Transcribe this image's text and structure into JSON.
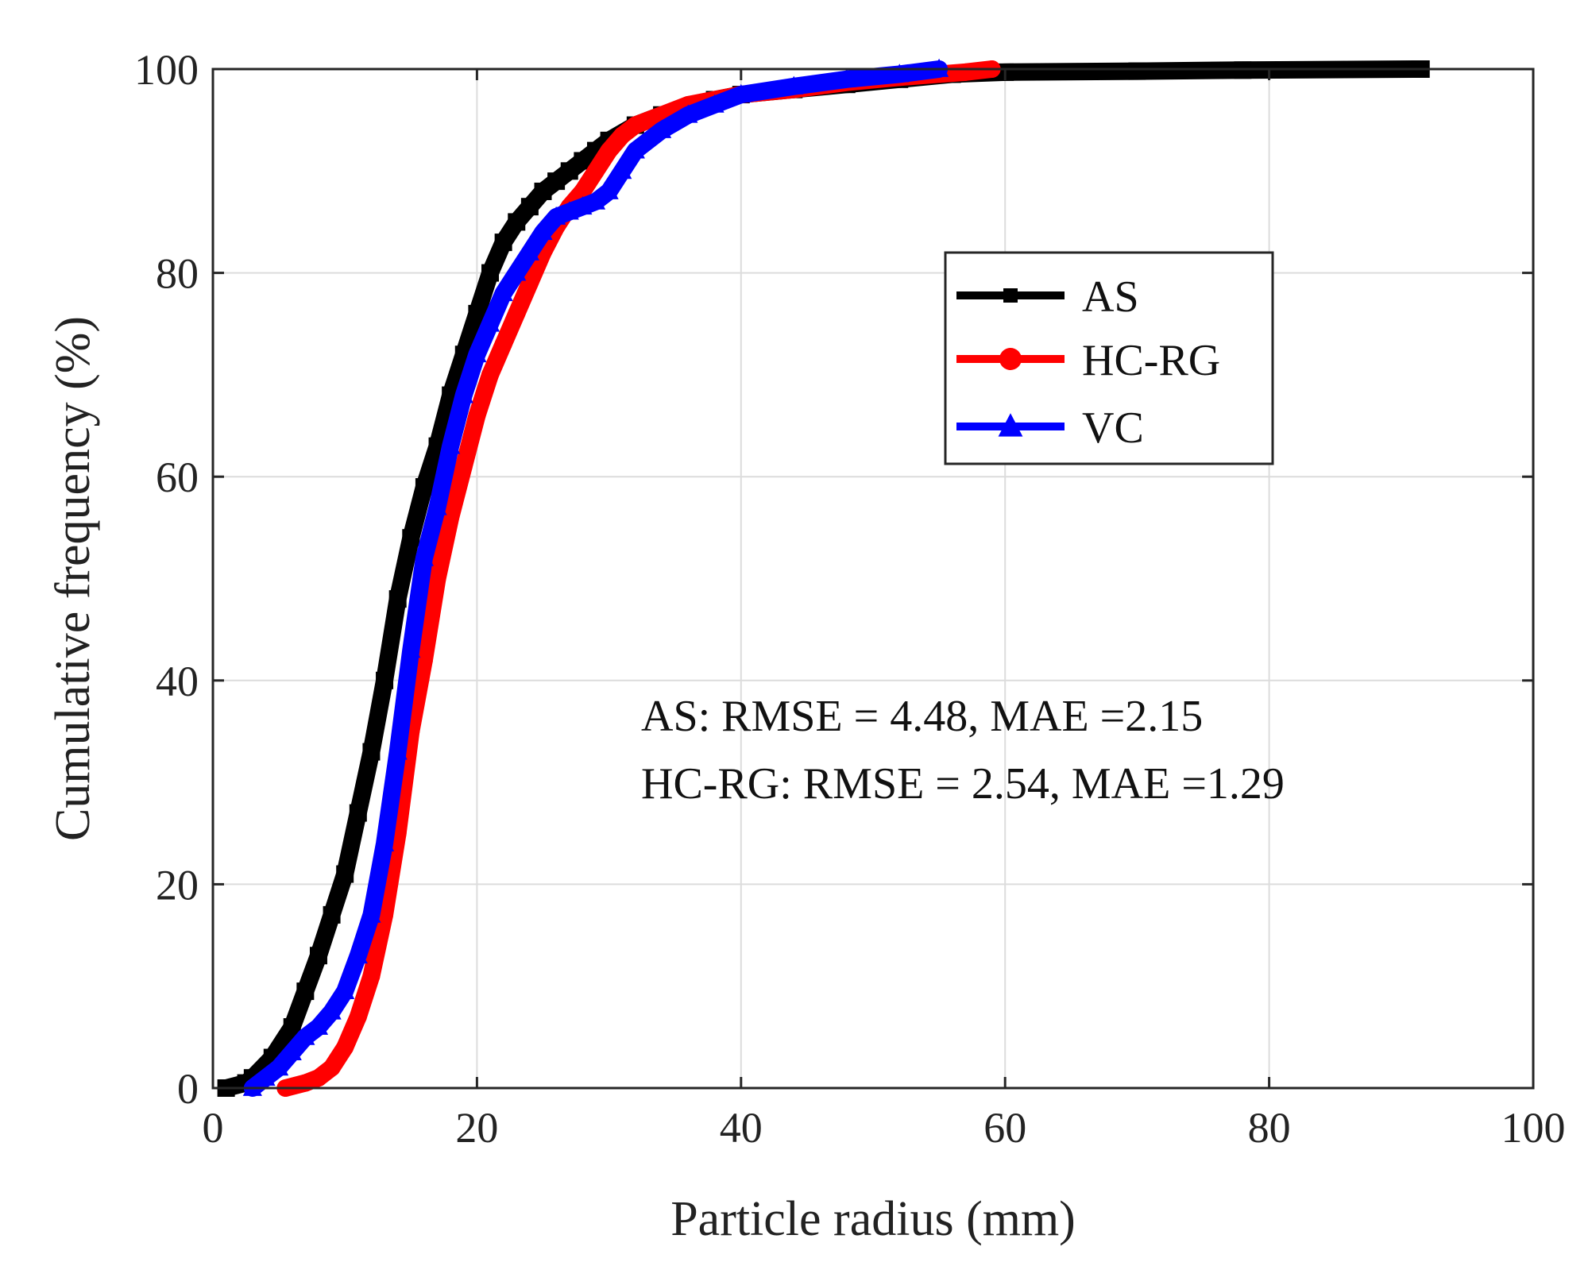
{
  "chart_data": {
    "type": "line",
    "title": "",
    "xlabel": "Particle radius (mm)",
    "ylabel": "Cumulative frequency (%)",
    "xlim": [
      0,
      100
    ],
    "ylim": [
      0,
      100
    ],
    "xticks": [
      0,
      20,
      40,
      60,
      80,
      100
    ],
    "yticks": [
      0,
      20,
      40,
      60,
      80,
      100
    ],
    "grid": true,
    "legend_position": "top-right",
    "series": [
      {
        "name": "AS",
        "color": "#000000",
        "marker": "square",
        "x": [
          1.0,
          2.5,
          3.0,
          4.5,
          6.0,
          7.0,
          8.0,
          9.0,
          10.0,
          11.0,
          12.0,
          13.0,
          14.0,
          15.0,
          16.0,
          17.0,
          18.0,
          19.0,
          20.0,
          21.0,
          22.0,
          23.0,
          24.0,
          25.0,
          26.0,
          27.0,
          28.0,
          29.0,
          30.0,
          32.0,
          34.0,
          36.0,
          38.0,
          40.0,
          44.0,
          48.0,
          52.0,
          56.0,
          60.0,
          70.0,
          78.0,
          91.5
        ],
        "y": [
          0.0,
          0.5,
          1.0,
          3.0,
          6.0,
          9.5,
          13.0,
          17.0,
          21.0,
          27.0,
          33.0,
          40.0,
          48.0,
          54.0,
          59.0,
          63.0,
          68.0,
          72.0,
          76.0,
          80.0,
          83.0,
          85.0,
          86.5,
          88.0,
          89.0,
          90.0,
          91.0,
          92.0,
          93.0,
          94.5,
          95.5,
          96.0,
          97.0,
          97.5,
          98.0,
          98.5,
          99.0,
          99.5,
          99.7,
          99.8,
          99.9,
          100.0
        ]
      },
      {
        "name": "HC-RG",
        "color": "#ff0000",
        "marker": "circle",
        "x": [
          5.5,
          7.0,
          8.0,
          9.0,
          10.0,
          11.0,
          12.0,
          13.0,
          14.0,
          15.0,
          16.0,
          17.0,
          18.0,
          19.0,
          20.0,
          21.0,
          22.0,
          23.0,
          24.0,
          25.0,
          26.0,
          27.0,
          28.0,
          29.0,
          30.0,
          31.0,
          32.0,
          34.0,
          36.0,
          38.0,
          40.0,
          44.0,
          48.0,
          52.0,
          55.0,
          57.0,
          59.0
        ],
        "y": [
          0.0,
          0.5,
          1.0,
          2.0,
          4.0,
          7.0,
          11.0,
          17.0,
          25.0,
          35.0,
          42.0,
          50.0,
          56.0,
          61.0,
          66.0,
          70.0,
          73.0,
          76.0,
          79.0,
          82.0,
          84.5,
          86.5,
          88.0,
          90.0,
          92.0,
          93.5,
          94.5,
          95.5,
          96.5,
          97.0,
          97.5,
          98.0,
          98.7,
          99.2,
          99.5,
          99.7,
          100.0
        ]
      },
      {
        "name": "VC",
        "color": "#0000ff",
        "marker": "triangle",
        "x": [
          3.0,
          4.0,
          5.0,
          6.0,
          7.0,
          8.0,
          9.0,
          10.0,
          11.0,
          12.0,
          13.0,
          14.0,
          15.0,
          16.0,
          17.0,
          18.0,
          19.0,
          20.0,
          21.0,
          22.0,
          23.0,
          24.0,
          25.0,
          26.0,
          27.0,
          28.0,
          29.0,
          30.0,
          31.0,
          32.0,
          34.0,
          36.0,
          38.0,
          40.0,
          44.0,
          48.0,
          52.0,
          55.0
        ],
        "y": [
          0.0,
          1.0,
          2.0,
          3.5,
          5.0,
          6.0,
          7.5,
          9.5,
          13.0,
          17.0,
          24.0,
          33.0,
          43.0,
          52.0,
          57.0,
          63.0,
          68.0,
          72.0,
          75.0,
          78.0,
          80.0,
          82.0,
          84.0,
          85.5,
          86.0,
          86.5,
          87.0,
          88.0,
          90.0,
          92.0,
          94.0,
          95.5,
          96.5,
          97.5,
          98.3,
          99.0,
          99.5,
          100.0
        ]
      }
    ],
    "annotations": [
      "AS: RMSE = 4.48, MAE =2.15",
      "HC-RG: RMSE = 2.54, MAE =1.29"
    ]
  }
}
